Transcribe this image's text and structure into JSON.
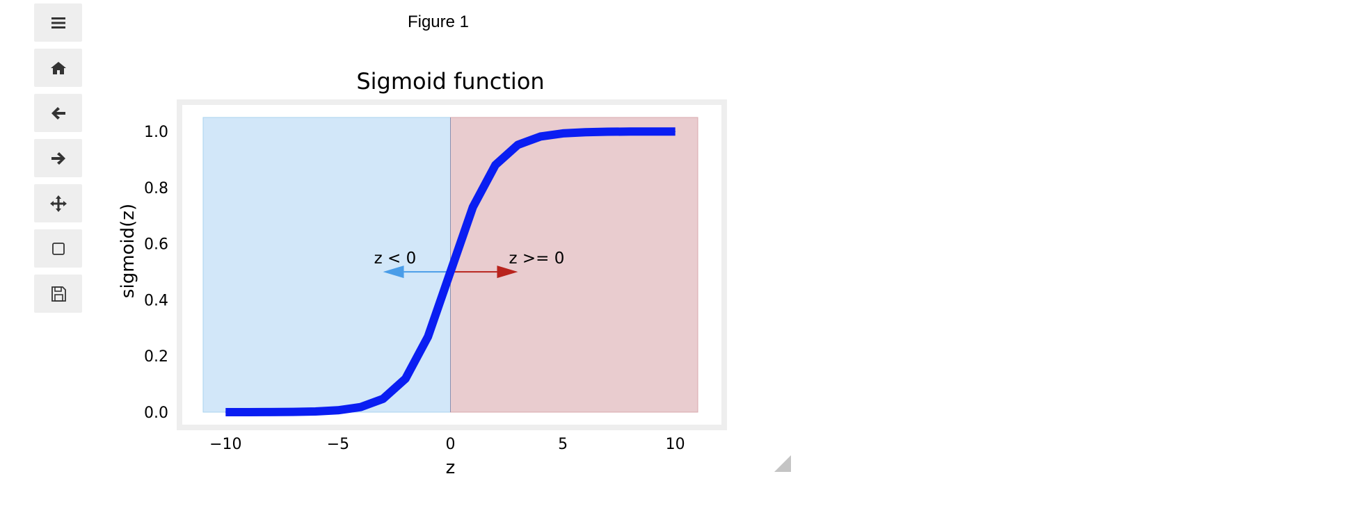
{
  "figure": {
    "title": "Figure 1"
  },
  "toolbar": {
    "buttons": [
      {
        "id": "menu",
        "icon": "menu-icon"
      },
      {
        "id": "home",
        "icon": "home-icon"
      },
      {
        "id": "back",
        "icon": "back-arrow-icon"
      },
      {
        "id": "forward",
        "icon": "forward-arrow-icon"
      },
      {
        "id": "pan",
        "icon": "move-icon"
      },
      {
        "id": "zoom",
        "icon": "zoom-rect-icon"
      },
      {
        "id": "save",
        "icon": "save-icon"
      }
    ]
  },
  "chart_data": {
    "type": "line",
    "title": "Sigmoid function",
    "xlabel": "z",
    "ylabel": "sigmoid(z)",
    "xlim": [
      -11,
      11
    ],
    "ylim": [
      0,
      1.05
    ],
    "xticks": [
      -10,
      -5,
      0,
      5,
      10
    ],
    "xtick_labels": [
      "−10",
      "−5",
      "0",
      "5",
      "10"
    ],
    "yticks": [
      0.0,
      0.2,
      0.4,
      0.6,
      0.8,
      1.0
    ],
    "ytick_labels": [
      "0.0",
      "0.2",
      "0.4",
      "0.6",
      "0.8",
      "1.0"
    ],
    "grid": false,
    "series": [
      {
        "color": "#0a1ef2",
        "x": [
          -10,
          -9,
          -8,
          -7,
          -6,
          -5,
          -4,
          -3,
          -2,
          -1,
          0,
          1,
          2,
          3,
          4,
          5,
          6,
          7,
          8,
          9,
          10
        ],
        "y": [
          4.54e-05,
          0.000123,
          0.000335,
          0.000911,
          0.00247,
          0.00669,
          0.018,
          0.0474,
          0.1192,
          0.2689,
          0.5,
          0.7311,
          0.8808,
          0.9526,
          0.982,
          0.9933,
          0.9975,
          0.9991,
          0.9997,
          0.9999,
          1.0
        ]
      }
    ],
    "regions": [
      {
        "x0": -11,
        "x1": 0,
        "y0": 0,
        "y1": 1.05,
        "color": "#d2e7f9"
      },
      {
        "x0": 0,
        "x1": 11,
        "y0": 0,
        "y1": 1.05,
        "color": "#e9cccf"
      }
    ],
    "annotations": [
      {
        "text": "z < 0",
        "text_x": -3.4,
        "text_y": 0.55,
        "arrow_from": [
          0,
          0.5
        ],
        "arrow_to": [
          -3,
          0.5
        ],
        "color": "#4a9de8"
      },
      {
        "text": "z >= 0",
        "text_x": 2.6,
        "text_y": 0.55,
        "arrow_from": [
          0,
          0.5
        ],
        "arrow_to": [
          3,
          0.5
        ],
        "color": "#b8231d"
      }
    ]
  }
}
